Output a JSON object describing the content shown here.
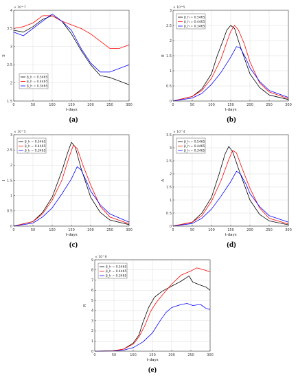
{
  "colors": {
    "black": "#000000",
    "red": "#ff0000",
    "blue": "#0000ff"
  },
  "chart_data": [
    {
      "type": "line",
      "panel": "(a)",
      "ylabel": "S",
      "xlabel": "t-days",
      "exponent": "× 10^7",
      "xlim": [
        0,
        300
      ],
      "ylim": [
        1.5,
        4
      ],
      "xticks": [
        0,
        50,
        100,
        150,
        200,
        250,
        300
      ],
      "yticks": [
        1.5,
        2,
        2.5,
        3,
        3.5,
        4
      ],
      "legend_pos": "bottom-left",
      "series": [
        {
          "name": "β_h = 0.5465",
          "color": "black",
          "points": [
            [
              0,
              3.45
            ],
            [
              25,
              3.4
            ],
            [
              50,
              3.55
            ],
            [
              75,
              3.75
            ],
            [
              100,
              3.85
            ],
            [
              125,
              3.7
            ],
            [
              150,
              3.35
            ],
            [
              175,
              2.9
            ],
            [
              200,
              2.5
            ],
            [
              225,
              2.2
            ],
            [
              250,
              2.15
            ],
            [
              275,
              2.05
            ],
            [
              300,
              1.95
            ]
          ]
        },
        {
          "name": "β_h = 0.4465",
          "color": "red",
          "points": [
            [
              0,
              3.5
            ],
            [
              25,
              3.55
            ],
            [
              50,
              3.65
            ],
            [
              75,
              3.85
            ],
            [
              100,
              3.85
            ],
            [
              125,
              3.7
            ],
            [
              150,
              3.6
            ],
            [
              175,
              3.5
            ],
            [
              200,
              3.35
            ],
            [
              225,
              3.15
            ],
            [
              250,
              2.95
            ],
            [
              275,
              2.95
            ],
            [
              300,
              3.05
            ]
          ]
        },
        {
          "name": "β_h = 0.3465",
          "color": "blue",
          "points": [
            [
              0,
              3.4
            ],
            [
              25,
              3.3
            ],
            [
              50,
              3.5
            ],
            [
              75,
              3.7
            ],
            [
              100,
              3.9
            ],
            [
              125,
              3.7
            ],
            [
              150,
              3.45
            ],
            [
              175,
              2.95
            ],
            [
              200,
              2.55
            ],
            [
              225,
              2.3
            ],
            [
              250,
              2.3
            ],
            [
              275,
              2.4
            ],
            [
              300,
              2.5
            ]
          ]
        }
      ]
    },
    {
      "type": "line",
      "panel": "(b)",
      "ylabel": "E",
      "xlabel": "t-days",
      "exponent": "× 10^5",
      "xlim": [
        0,
        300
      ],
      "ylim": [
        0,
        3
      ],
      "xticks": [
        0,
        50,
        100,
        150,
        200,
        250,
        300
      ],
      "yticks": [
        0,
        0.5,
        1,
        1.5,
        2,
        2.5,
        3
      ],
      "legend_pos": "top-left",
      "series": [
        {
          "name": "β_h = 0.5465",
          "color": "black",
          "points": [
            [
              0,
              0
            ],
            [
              50,
              0.15
            ],
            [
              75,
              0.4
            ],
            [
              100,
              0.9
            ],
            [
              115,
              1.5
            ],
            [
              130,
              2.0
            ],
            [
              140,
              2.35
            ],
            [
              150,
              2.5
            ],
            [
              160,
              2.4
            ],
            [
              175,
              1.8
            ],
            [
              200,
              0.9
            ],
            [
              225,
              0.45
            ],
            [
              250,
              0.2
            ],
            [
              300,
              0.05
            ]
          ]
        },
        {
          "name": "β_h = 0.4465",
          "color": "red",
          "points": [
            [
              0,
              0
            ],
            [
              50,
              0.15
            ],
            [
              75,
              0.35
            ],
            [
              100,
              0.75
            ],
            [
              125,
              1.4
            ],
            [
              140,
              1.95
            ],
            [
              150,
              2.3
            ],
            [
              160,
              2.5
            ],
            [
              170,
              2.35
            ],
            [
              185,
              1.9
            ],
            [
              200,
              1.3
            ],
            [
              225,
              0.6
            ],
            [
              250,
              0.3
            ],
            [
              300,
              0.08
            ]
          ]
        },
        {
          "name": "β_h = 0.3465",
          "color": "blue",
          "points": [
            [
              0,
              0
            ],
            [
              50,
              0.1
            ],
            [
              75,
              0.25
            ],
            [
              100,
              0.55
            ],
            [
              125,
              0.95
            ],
            [
              150,
              1.45
            ],
            [
              165,
              1.8
            ],
            [
              175,
              1.75
            ],
            [
              190,
              1.4
            ],
            [
              200,
              1.1
            ],
            [
              225,
              0.65
            ],
            [
              250,
              0.35
            ],
            [
              300,
              0.12
            ]
          ]
        }
      ]
    },
    {
      "type": "line",
      "panel": "(c)",
      "ylabel": "I",
      "xlabel": "t-days",
      "exponent": "× 10^5",
      "xlim": [
        0,
        300
      ],
      "ylim": [
        0,
        3
      ],
      "xticks": [
        0,
        50,
        100,
        150,
        200,
        250,
        300
      ],
      "yticks": [
        0,
        0.5,
        1,
        1.5,
        2,
        2.5,
        3
      ],
      "legend_pos": "top-left",
      "series": [
        {
          "name": "β_h = 0.5465",
          "color": "black",
          "points": [
            [
              0,
              0
            ],
            [
              50,
              0.15
            ],
            [
              75,
              0.45
            ],
            [
              100,
              0.95
            ],
            [
              125,
              1.8
            ],
            [
              140,
              2.4
            ],
            [
              150,
              2.75
            ],
            [
              160,
              2.6
            ],
            [
              175,
              1.9
            ],
            [
              200,
              0.95
            ],
            [
              225,
              0.45
            ],
            [
              250,
              0.2
            ],
            [
              300,
              0.05
            ]
          ]
        },
        {
          "name": "β_h = 0.4465",
          "color": "red",
          "points": [
            [
              0,
              0
            ],
            [
              50,
              0.15
            ],
            [
              75,
              0.4
            ],
            [
              100,
              0.85
            ],
            [
              125,
              1.5
            ],
            [
              145,
              2.3
            ],
            [
              155,
              2.65
            ],
            [
              165,
              2.55
            ],
            [
              180,
              2.0
            ],
            [
              200,
              1.35
            ],
            [
              225,
              0.65
            ],
            [
              250,
              0.3
            ],
            [
              300,
              0.08
            ]
          ]
        },
        {
          "name": "β_h = 0.3465",
          "color": "blue",
          "points": [
            [
              0,
              0
            ],
            [
              50,
              0.1
            ],
            [
              75,
              0.3
            ],
            [
              100,
              0.6
            ],
            [
              125,
              1.05
            ],
            [
              150,
              1.55
            ],
            [
              165,
              1.95
            ],
            [
              175,
              1.85
            ],
            [
              190,
              1.45
            ],
            [
              200,
              1.15
            ],
            [
              225,
              0.7
            ],
            [
              250,
              0.4
            ],
            [
              300,
              0.13
            ]
          ]
        }
      ]
    },
    {
      "type": "line",
      "panel": "(d)",
      "ylabel": "A",
      "xlabel": "t-days",
      "exponent": "× 10^4",
      "xlim": [
        0,
        300
      ],
      "ylim": [
        0,
        3.5
      ],
      "xticks": [
        0,
        50,
        100,
        150,
        200,
        250,
        300
      ],
      "yticks": [
        0,
        0.5,
        1,
        1.5,
        2,
        2.5,
        3,
        3.5
      ],
      "legend_pos": "top-left",
      "series": [
        {
          "name": "β_h = 0.5465",
          "color": "black",
          "points": [
            [
              0,
              0
            ],
            [
              50,
              0.15
            ],
            [
              75,
              0.5
            ],
            [
              100,
              1.1
            ],
            [
              120,
              2.0
            ],
            [
              135,
              2.75
            ],
            [
              145,
              3.05
            ],
            [
              155,
              2.85
            ],
            [
              175,
              2.0
            ],
            [
              200,
              1.0
            ],
            [
              225,
              0.45
            ],
            [
              250,
              0.2
            ],
            [
              300,
              0.05
            ]
          ]
        },
        {
          "name": "β_h = 0.4465",
          "color": "red",
          "points": [
            [
              0,
              0
            ],
            [
              50,
              0.15
            ],
            [
              75,
              0.4
            ],
            [
              100,
              0.95
            ],
            [
              125,
              1.75
            ],
            [
              145,
              2.55
            ],
            [
              155,
              2.9
            ],
            [
              165,
              2.8
            ],
            [
              180,
              2.2
            ],
            [
              200,
              1.45
            ],
            [
              225,
              0.7
            ],
            [
              250,
              0.3
            ],
            [
              300,
              0.08
            ]
          ]
        },
        {
          "name": "β_h = 0.3465",
          "color": "blue",
          "points": [
            [
              0,
              0
            ],
            [
              50,
              0.1
            ],
            [
              75,
              0.3
            ],
            [
              100,
              0.65
            ],
            [
              125,
              1.15
            ],
            [
              150,
              1.7
            ],
            [
              165,
              2.1
            ],
            [
              175,
              2.0
            ],
            [
              190,
              1.6
            ],
            [
              200,
              1.25
            ],
            [
              225,
              0.75
            ],
            [
              250,
              0.4
            ],
            [
              300,
              0.15
            ]
          ]
        }
      ]
    },
    {
      "type": "line",
      "panel": "(e)",
      "ylabel": "R",
      "xlabel": "t-days",
      "exponent": "× 10^6",
      "xlim": [
        0,
        300
      ],
      "ylim": [
        0,
        9
      ],
      "xticks": [
        0,
        50,
        100,
        150,
        200,
        250,
        300
      ],
      "yticks": [
        0,
        1,
        2,
        3,
        4,
        5,
        6,
        7,
        8,
        9
      ],
      "legend_pos": "top-left",
      "series": [
        {
          "name": "β_h = 0.5465",
          "color": "black",
          "points": [
            [
              0,
              0
            ],
            [
              50,
              0.05
            ],
            [
              75,
              0.2
            ],
            [
              100,
              0.8
            ],
            [
              115,
              1.6
            ],
            [
              125,
              2.8
            ],
            [
              140,
              4.3
            ],
            [
              155,
              5.3
            ],
            [
              175,
              5.9
            ],
            [
              200,
              6.4
            ],
            [
              225,
              6.9
            ],
            [
              245,
              7.4
            ],
            [
              255,
              6.8
            ],
            [
              275,
              6.5
            ],
            [
              290,
              6.3
            ],
            [
              300,
              6.0
            ]
          ]
        },
        {
          "name": "β_h = 0.4465",
          "color": "red",
          "points": [
            [
              0,
              0
            ],
            [
              50,
              0.05
            ],
            [
              75,
              0.2
            ],
            [
              100,
              0.7
            ],
            [
              115,
              1.4
            ],
            [
              130,
              2.5
            ],
            [
              145,
              3.9
            ],
            [
              160,
              4.8
            ],
            [
              175,
              5.5
            ],
            [
              200,
              6.6
            ],
            [
              225,
              7.5
            ],
            [
              250,
              7.9
            ],
            [
              265,
              8.2
            ],
            [
              285,
              8.0
            ],
            [
              300,
              7.8
            ]
          ]
        },
        {
          "name": "β_h = 0.3465",
          "color": "blue",
          "points": [
            [
              0,
              0
            ],
            [
              50,
              0.03
            ],
            [
              75,
              0.1
            ],
            [
              100,
              0.35
            ],
            [
              125,
              0.9
            ],
            [
              150,
              1.8
            ],
            [
              170,
              3.0
            ],
            [
              185,
              3.8
            ],
            [
              200,
              4.3
            ],
            [
              225,
              4.6
            ],
            [
              240,
              4.7
            ],
            [
              255,
              4.5
            ],
            [
              275,
              4.6
            ],
            [
              290,
              4.2
            ],
            [
              300,
              4.1
            ]
          ]
        }
      ]
    }
  ]
}
